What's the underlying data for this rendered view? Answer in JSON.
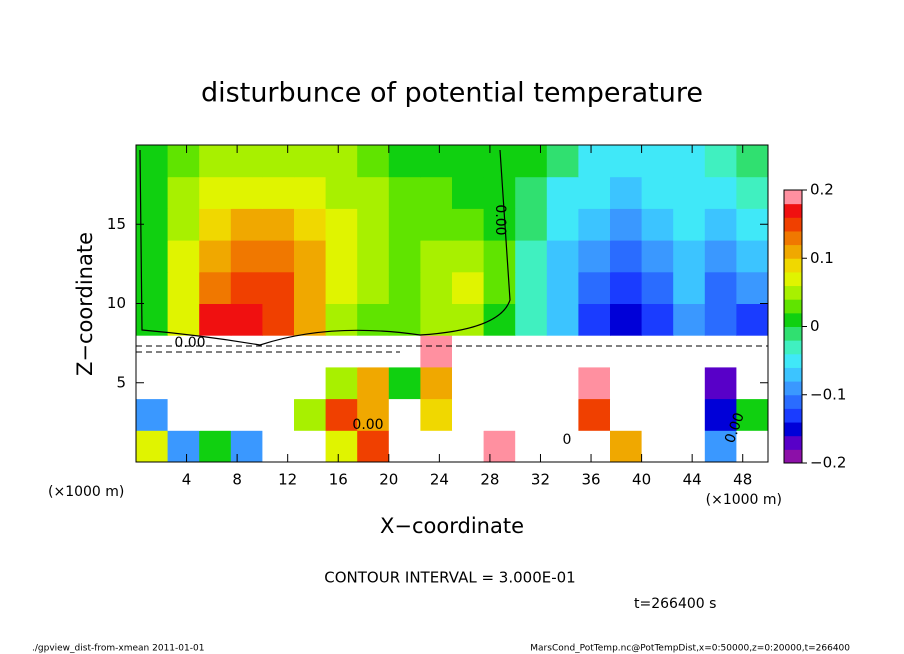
{
  "chart_data": {
    "type": "heatmap",
    "title": "disturbunce of potential temperature",
    "xlabel": "X−coordinate",
    "ylabel": "Z−coordinate",
    "xunit": "(×1000 m)",
    "yunit": "(×1000 m)",
    "contour_interval": "CONTOUR INTERVAL = 3.000E-01",
    "time_label": "t=266400 s",
    "footer_left": "./gpview_dist-from-xmean  2011-01-01",
    "footer_right": "MarsCond_PotTemp.nc@PotTempDist,x=0:50000,z=0:20000,t=266400",
    "contour_labels": [
      "0.00",
      "0.00",
      "0.00",
      "0",
      "0.00"
    ],
    "xlim": [
      0,
      50
    ],
    "ylim": [
      0,
      20
    ],
    "xticks": [
      4,
      8,
      12,
      16,
      20,
      24,
      28,
      32,
      36,
      40,
      44,
      48
    ],
    "yticks": [
      5,
      10,
      15
    ],
    "clim": [
      -0.2,
      0.2
    ],
    "cticks": [
      {
        "value": -0.2,
        "label": "−0.2"
      },
      {
        "value": -0.1,
        "label": "−0.1"
      },
      0,
      0.1,
      0.2
    ],
    "colors": [
      "#8c10a8",
      "#5800c8",
      "#0000d8",
      "#1a3cff",
      "#2a6cff",
      "#3a98ff",
      "#3cc4ff",
      "#40e8f8",
      "#40f0c0",
      "#30e070",
      "#10d010",
      "#60e400",
      "#a8f000",
      "#e0f400",
      "#f0d800",
      "#f0a800",
      "#f07800",
      "#f04000",
      "#f01010",
      "#ff90a0"
    ],
    "x": [
      1.25,
      3.75,
      6.25,
      8.75,
      11.25,
      13.75,
      16.25,
      18.75,
      21.25,
      23.75,
      26.25,
      28.75,
      31.25,
      33.75,
      36.25,
      38.75,
      41.25,
      43.75,
      46.25,
      48.75
    ],
    "y": [
      1,
      3,
      5,
      7,
      9,
      11,
      13,
      15,
      17,
      19
    ],
    "z": [
      [
        0.06,
        -0.1,
        0.0,
        -0.1,
        0.3,
        0.3,
        0.06,
        0.15,
        0.3,
        0.3,
        0.3,
        0.2,
        0.3,
        0.3,
        0.3,
        0.1,
        0.3,
        0.3,
        -0.1,
        0.3
      ],
      [
        -0.1,
        0.3,
        0.3,
        0.3,
        0.3,
        0.05,
        0.15,
        0.12,
        0.3,
        0.08,
        0.25,
        0.3,
        0.3,
        0.3,
        0.15,
        0.3,
        0.3,
        0.3,
        -0.15,
        0.0
      ],
      [
        0.3,
        0.3,
        0.3,
        0.3,
        0.25,
        0.3,
        0.05,
        0.1,
        0.0,
        0.12,
        0.3,
        0.3,
        0.3,
        0.3,
        0.18,
        0.3,
        0.3,
        0.3,
        -0.18,
        0.3
      ],
      [
        0.3,
        0.3,
        0.3,
        0.3,
        0.3,
        0.3,
        0.3,
        0.3,
        0.3,
        0.2,
        0.3,
        0.3,
        0.3,
        0.3,
        0.3,
        0.3,
        0.3,
        0.3,
        0.3,
        0.3
      ],
      [
        0.01,
        0.06,
        0.16,
        0.17,
        0.14,
        0.1,
        0.05,
        0.03,
        0.03,
        0.04,
        0.04,
        0.02,
        -0.03,
        -0.08,
        -0.13,
        -0.16,
        -0.14,
        -0.1,
        -0.12,
        -0.14
      ],
      [
        0.01,
        0.07,
        0.13,
        0.15,
        0.15,
        0.12,
        0.07,
        0.04,
        0.03,
        0.05,
        0.07,
        0.03,
        -0.03,
        -0.08,
        -0.12,
        -0.14,
        -0.12,
        -0.08,
        -0.11,
        -0.1
      ],
      [
        0.02,
        0.06,
        0.11,
        0.13,
        0.13,
        0.11,
        0.07,
        0.04,
        0.03,
        0.04,
        0.05,
        0.03,
        -0.03,
        -0.07,
        -0.1,
        -0.11,
        -0.09,
        -0.07,
        -0.1,
        -0.08
      ],
      [
        0.02,
        0.05,
        0.09,
        0.11,
        0.11,
        0.09,
        0.06,
        0.04,
        0.03,
        0.03,
        0.03,
        0.02,
        -0.02,
        -0.06,
        -0.08,
        -0.09,
        -0.08,
        -0.06,
        -0.08,
        -0.06
      ],
      [
        0.02,
        0.04,
        0.06,
        0.07,
        0.07,
        0.06,
        0.05,
        0.04,
        0.03,
        0.03,
        0.02,
        0.01,
        -0.01,
        -0.04,
        -0.06,
        -0.07,
        -0.06,
        -0.05,
        -0.04,
        -0.03
      ],
      [
        0.02,
        0.03,
        0.04,
        0.05,
        0.05,
        0.04,
        0.04,
        0.03,
        0.02,
        0.02,
        0.02,
        0.01,
        0.0,
        -0.02,
        -0.04,
        -0.05,
        -0.05,
        -0.04,
        -0.03,
        -0.02
      ]
    ]
  }
}
